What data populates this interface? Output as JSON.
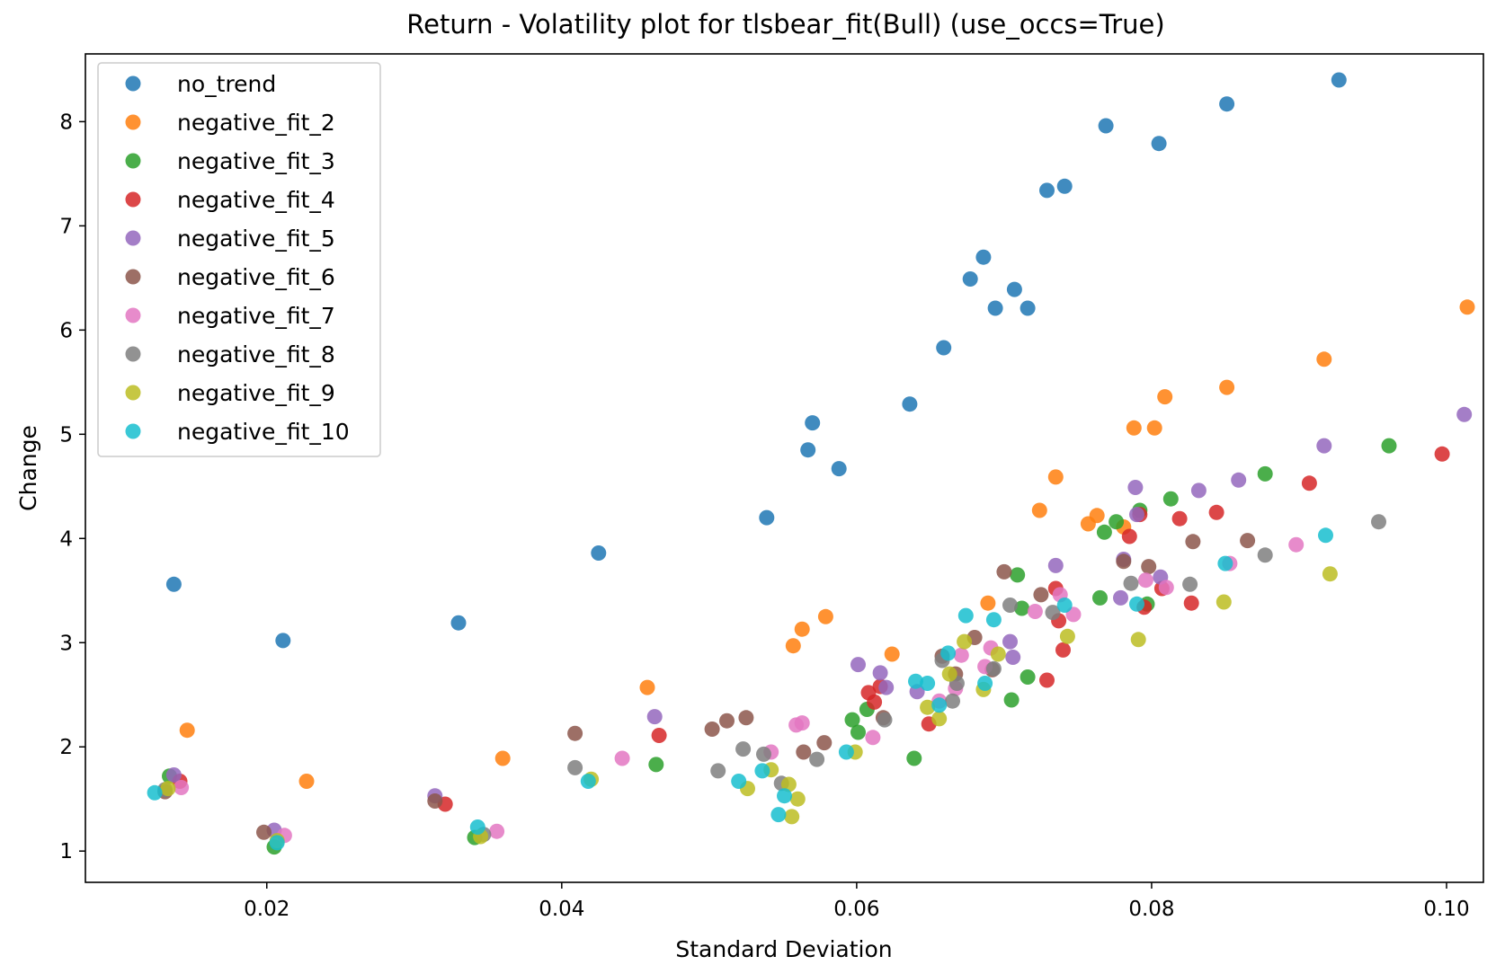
{
  "chart_data": {
    "type": "scatter",
    "title": "Return - Volatility plot for tlsbear_fit(Bull) (use_occs=True)",
    "xlabel": "Standard Deviation",
    "ylabel": "Change",
    "xlim": [
      0.0077,
      0.1025
    ],
    "ylim": [
      0.7,
      8.65
    ],
    "xticks": [
      0.02,
      0.04,
      0.06,
      0.08,
      0.1
    ],
    "xtick_labels": [
      "0.02",
      "0.04",
      "0.06",
      "0.08",
      "0.10"
    ],
    "yticks": [
      1,
      2,
      3,
      4,
      5,
      6,
      7,
      8
    ],
    "ytick_labels": [
      "1",
      "2",
      "3",
      "4",
      "5",
      "6",
      "7",
      "8"
    ],
    "grid": false,
    "legend_position": "top-left",
    "series": [
      {
        "name": "no_trend",
        "color": "#1f77b4",
        "points": [
          [
            0.0137,
            3.56
          ],
          [
            0.0211,
            3.02
          ],
          [
            0.033,
            3.19
          ],
          [
            0.0425,
            3.86
          ],
          [
            0.0539,
            4.2
          ],
          [
            0.0567,
            4.85
          ],
          [
            0.057,
            5.11
          ],
          [
            0.0588,
            4.67
          ],
          [
            0.0636,
            5.29
          ],
          [
            0.0659,
            5.83
          ],
          [
            0.0677,
            6.49
          ],
          [
            0.0686,
            6.7
          ],
          [
            0.0694,
            6.21
          ],
          [
            0.0707,
            6.39
          ],
          [
            0.0716,
            6.21
          ],
          [
            0.0729,
            7.34
          ],
          [
            0.0741,
            7.38
          ],
          [
            0.0769,
            7.96
          ],
          [
            0.0805,
            7.79
          ],
          [
            0.0851,
            8.17
          ],
          [
            0.0927,
            8.4
          ]
        ]
      },
      {
        "name": "negative_fit_2",
        "color": "#ff7f0e",
        "points": [
          [
            0.0146,
            2.16
          ],
          [
            0.0227,
            1.67
          ],
          [
            0.036,
            1.89
          ],
          [
            0.0458,
            2.57
          ],
          [
            0.0557,
            2.97
          ],
          [
            0.0563,
            3.13
          ],
          [
            0.0579,
            3.25
          ],
          [
            0.0624,
            2.89
          ],
          [
            0.0689,
            3.38
          ],
          [
            0.0724,
            4.27
          ],
          [
            0.0735,
            4.59
          ],
          [
            0.0757,
            4.14
          ],
          [
            0.0763,
            4.22
          ],
          [
            0.0781,
            4.11
          ],
          [
            0.0788,
            5.06
          ],
          [
            0.0802,
            5.06
          ],
          [
            0.0809,
            5.36
          ],
          [
            0.0851,
            5.45
          ],
          [
            0.0917,
            5.72
          ],
          [
            0.1014,
            6.22
          ]
        ]
      },
      {
        "name": "negative_fit_3",
        "color": "#2ca02c",
        "points": [
          [
            0.0134,
            1.72
          ],
          [
            0.0205,
            1.04
          ],
          [
            0.0341,
            1.13
          ],
          [
            0.0464,
            1.83
          ],
          [
            0.0597,
            2.26
          ],
          [
            0.0601,
            2.14
          ],
          [
            0.0607,
            2.36
          ],
          [
            0.0639,
            1.89
          ],
          [
            0.0705,
            2.45
          ],
          [
            0.0709,
            3.65
          ],
          [
            0.0712,
            3.33
          ],
          [
            0.0716,
            2.67
          ],
          [
            0.0765,
            3.43
          ],
          [
            0.0768,
            4.06
          ],
          [
            0.0776,
            4.16
          ],
          [
            0.0792,
            4.27
          ],
          [
            0.0797,
            3.37
          ],
          [
            0.0813,
            4.38
          ],
          [
            0.0877,
            4.62
          ],
          [
            0.0961,
            4.89
          ]
        ]
      },
      {
        "name": "negative_fit_4",
        "color": "#d62728",
        "points": [
          [
            0.0141,
            1.67
          ],
          [
            0.0321,
            1.45
          ],
          [
            0.0466,
            2.11
          ],
          [
            0.0608,
            2.52
          ],
          [
            0.0612,
            2.43
          ],
          [
            0.0616,
            2.58
          ],
          [
            0.0649,
            2.22
          ],
          [
            0.0729,
            2.64
          ],
          [
            0.0735,
            3.52
          ],
          [
            0.0737,
            3.21
          ],
          [
            0.074,
            2.93
          ],
          [
            0.0785,
            4.02
          ],
          [
            0.0792,
            4.23
          ],
          [
            0.0795,
            3.34
          ],
          [
            0.0807,
            3.52
          ],
          [
            0.0819,
            4.19
          ],
          [
            0.0827,
            3.38
          ],
          [
            0.0844,
            4.25
          ],
          [
            0.0907,
            4.53
          ],
          [
            0.0997,
            4.81
          ]
        ]
      },
      {
        "name": "negative_fit_5",
        "color": "#9467bd",
        "points": [
          [
            0.0137,
            1.73
          ],
          [
            0.0205,
            1.2
          ],
          [
            0.0314,
            1.53
          ],
          [
            0.0463,
            2.29
          ],
          [
            0.0601,
            2.79
          ],
          [
            0.0616,
            2.71
          ],
          [
            0.062,
            2.57
          ],
          [
            0.0641,
            2.53
          ],
          [
            0.0704,
            3.01
          ],
          [
            0.0706,
            2.86
          ],
          [
            0.0735,
            3.74
          ],
          [
            0.0779,
            3.43
          ],
          [
            0.0781,
            3.8
          ],
          [
            0.0789,
            4.49
          ],
          [
            0.079,
            4.23
          ],
          [
            0.0806,
            3.63
          ],
          [
            0.0832,
            4.46
          ],
          [
            0.0859,
            4.56
          ],
          [
            0.0917,
            4.89
          ],
          [
            0.1012,
            5.19
          ]
        ]
      },
      {
        "name": "negative_fit_6",
        "color": "#8c564b",
        "points": [
          [
            0.0131,
            1.57
          ],
          [
            0.0198,
            1.18
          ],
          [
            0.0314,
            1.48
          ],
          [
            0.0409,
            2.13
          ],
          [
            0.0502,
            2.17
          ],
          [
            0.0512,
            2.25
          ],
          [
            0.0525,
            2.28
          ],
          [
            0.0564,
            1.95
          ],
          [
            0.0578,
            2.04
          ],
          [
            0.0618,
            2.28
          ],
          [
            0.0658,
            2.87
          ],
          [
            0.0667,
            2.7
          ],
          [
            0.068,
            3.05
          ],
          [
            0.07,
            3.68
          ],
          [
            0.0725,
            3.46
          ],
          [
            0.0781,
            3.78
          ],
          [
            0.0798,
            3.73
          ],
          [
            0.0828,
            3.97
          ],
          [
            0.0865,
            3.98
          ],
          [
            0.0692,
            2.74
          ]
        ]
      },
      {
        "name": "negative_fit_7",
        "color": "#e377c2",
        "points": [
          [
            0.0142,
            1.61
          ],
          [
            0.0212,
            1.15
          ],
          [
            0.0356,
            1.19
          ],
          [
            0.0441,
            1.89
          ],
          [
            0.0542,
            1.95
          ],
          [
            0.0559,
            2.21
          ],
          [
            0.0563,
            2.23
          ],
          [
            0.0611,
            2.09
          ],
          [
            0.0656,
            2.44
          ],
          [
            0.0667,
            2.56
          ],
          [
            0.0671,
            2.88
          ],
          [
            0.0687,
            2.77
          ],
          [
            0.0691,
            2.95
          ],
          [
            0.0721,
            3.3
          ],
          [
            0.0747,
            3.27
          ],
          [
            0.0796,
            3.6
          ],
          [
            0.081,
            3.53
          ],
          [
            0.0853,
            3.76
          ],
          [
            0.0898,
            3.94
          ],
          [
            0.0738,
            3.46
          ]
        ]
      },
      {
        "name": "negative_fit_8",
        "color": "#7f7f7f",
        "points": [
          [
            0.0131,
            1.59
          ],
          [
            0.0347,
            1.16
          ],
          [
            0.0409,
            1.8
          ],
          [
            0.0506,
            1.77
          ],
          [
            0.0523,
            1.98
          ],
          [
            0.0537,
            1.93
          ],
          [
            0.0573,
            1.88
          ],
          [
            0.0619,
            2.26
          ],
          [
            0.0658,
            2.83
          ],
          [
            0.0665,
            2.44
          ],
          [
            0.0668,
            2.61
          ],
          [
            0.0693,
            2.75
          ],
          [
            0.0704,
            3.36
          ],
          [
            0.0733,
            3.29
          ],
          [
            0.0786,
            3.57
          ],
          [
            0.0826,
            3.56
          ],
          [
            0.0877,
            3.84
          ],
          [
            0.0954,
            4.16
          ],
          [
            0.0549,
            1.65
          ]
        ]
      },
      {
        "name": "negative_fit_9",
        "color": "#bcbd22",
        "points": [
          [
            0.0133,
            1.6
          ],
          [
            0.0207,
            1.1
          ],
          [
            0.0345,
            1.14
          ],
          [
            0.042,
            1.69
          ],
          [
            0.0526,
            1.6
          ],
          [
            0.0542,
            1.78
          ],
          [
            0.0554,
            1.64
          ],
          [
            0.0556,
            1.33
          ],
          [
            0.056,
            1.5
          ],
          [
            0.0599,
            1.95
          ],
          [
            0.0648,
            2.38
          ],
          [
            0.0656,
            2.27
          ],
          [
            0.0663,
            2.7
          ],
          [
            0.0673,
            3.01
          ],
          [
            0.0686,
            2.55
          ],
          [
            0.0696,
            2.89
          ],
          [
            0.0743,
            3.06
          ],
          [
            0.0791,
            3.03
          ],
          [
            0.0849,
            3.39
          ],
          [
            0.0921,
            3.66
          ]
        ]
      },
      {
        "name": "negative_fit_10",
        "color": "#17becf",
        "points": [
          [
            0.0124,
            1.56
          ],
          [
            0.0207,
            1.08
          ],
          [
            0.0343,
            1.23
          ],
          [
            0.0418,
            1.67
          ],
          [
            0.052,
            1.67
          ],
          [
            0.0536,
            1.77
          ],
          [
            0.0547,
            1.35
          ],
          [
            0.0551,
            1.53
          ],
          [
            0.0593,
            1.95
          ],
          [
            0.064,
            2.63
          ],
          [
            0.0648,
            2.61
          ],
          [
            0.0656,
            2.4
          ],
          [
            0.0662,
            2.9
          ],
          [
            0.0674,
            3.26
          ],
          [
            0.0687,
            2.61
          ],
          [
            0.0693,
            3.22
          ],
          [
            0.0741,
            3.36
          ],
          [
            0.079,
            3.37
          ],
          [
            0.085,
            3.76
          ],
          [
            0.0918,
            4.03
          ]
        ]
      }
    ]
  }
}
